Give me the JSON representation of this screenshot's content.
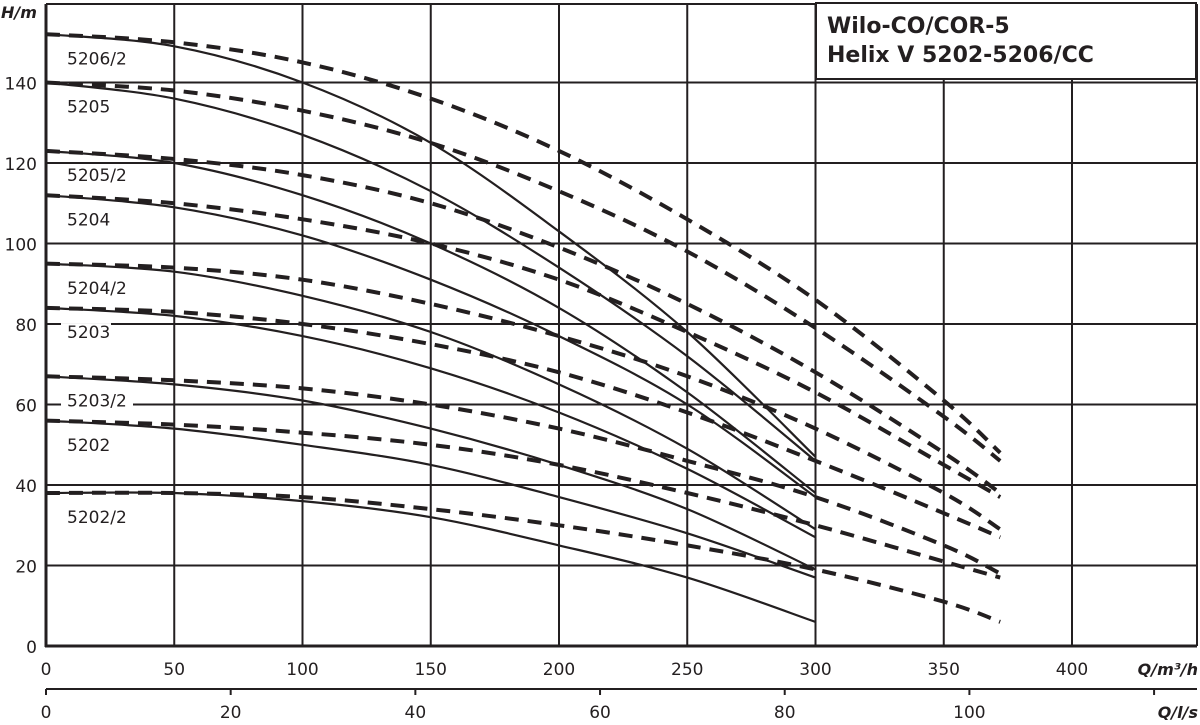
{
  "title": {
    "line1": "Wilo-CO/COR-5",
    "line2": "Helix V 5202-5206/CC"
  },
  "colors": {
    "line": "#231f20",
    "background": "#ffffff"
  },
  "chart_data": {
    "type": "line",
    "title": "Wilo-CO/COR-5 Helix V 5202-5206/CC",
    "xlabel": "Q/m³/h",
    "xlabel2": "Q/l/s",
    "ylabel": "H/m",
    "xlim": [
      0,
      445
    ],
    "ylim": [
      0,
      159
    ],
    "x_ticks": [
      0,
      50,
      100,
      150,
      200,
      250,
      300,
      350,
      400
    ],
    "x2_ticks": [
      0,
      20,
      40,
      60,
      80,
      100
    ],
    "y_ticks": [
      0,
      20,
      40,
      60,
      80,
      100,
      120,
      140
    ],
    "grid": true,
    "legend": "inline curve labels",
    "series": [
      {
        "name": "5206/2",
        "style": "solid",
        "x": [
          0,
          50,
          100,
          150,
          200,
          250,
          300
        ],
        "y": [
          152,
          149,
          140,
          125,
          103,
          78,
          47
        ]
      },
      {
        "name": "5206/2",
        "style": "dashed",
        "x": [
          0,
          50,
          100,
          150,
          200,
          250,
          300,
          350,
          372
        ],
        "y": [
          152,
          150,
          145,
          136,
          123,
          106,
          86,
          61,
          48
        ]
      },
      {
        "name": "5205",
        "style": "solid",
        "x": [
          0,
          50,
          100,
          150,
          200,
          250,
          300
        ],
        "y": [
          140,
          136,
          127,
          113,
          94,
          72,
          46
        ]
      },
      {
        "name": "5205",
        "style": "dashed",
        "x": [
          0,
          50,
          100,
          150,
          200,
          250,
          300,
          350,
          372
        ],
        "y": [
          140,
          138,
          133,
          125,
          113,
          98,
          79,
          57,
          46
        ]
      },
      {
        "name": "5205/2",
        "style": "solid",
        "x": [
          0,
          50,
          100,
          150,
          200,
          250,
          300
        ],
        "y": [
          123,
          120,
          112,
          100,
          84,
          63,
          38
        ]
      },
      {
        "name": "5205/2",
        "style": "dashed",
        "x": [
          0,
          50,
          100,
          150,
          200,
          250,
          300,
          350,
          372
        ],
        "y": [
          123,
          121,
          117,
          110,
          99,
          85,
          68,
          48,
          38
        ]
      },
      {
        "name": "5204",
        "style": "solid",
        "x": [
          0,
          50,
          100,
          150,
          200,
          250,
          300
        ],
        "y": [
          112,
          109,
          102,
          91,
          77,
          60,
          37
        ]
      },
      {
        "name": "5204",
        "style": "dashed",
        "x": [
          0,
          50,
          100,
          150,
          200,
          250,
          300,
          350,
          372
        ],
        "y": [
          112,
          110,
          106,
          100,
          91,
          78,
          63,
          45,
          37
        ]
      },
      {
        "name": "5204/2",
        "style": "solid",
        "x": [
          0,
          50,
          100,
          150,
          200,
          250,
          300
        ],
        "y": [
          95,
          93,
          87,
          78,
          65,
          49,
          29
        ]
      },
      {
        "name": "5204/2",
        "style": "dashed",
        "x": [
          0,
          50,
          100,
          150,
          200,
          250,
          300,
          350,
          372
        ],
        "y": [
          95,
          94,
          91,
          85,
          77,
          67,
          54,
          38,
          29
        ]
      },
      {
        "name": "5203",
        "style": "solid",
        "x": [
          0,
          50,
          100,
          150,
          200,
          250,
          300
        ],
        "y": [
          84,
          82,
          77,
          69,
          58,
          44,
          27
        ]
      },
      {
        "name": "5203",
        "style": "dashed",
        "x": [
          0,
          50,
          100,
          150,
          200,
          250,
          300,
          350,
          372
        ],
        "y": [
          84,
          83,
          80,
          75,
          68,
          58,
          46,
          33,
          27
        ]
      },
      {
        "name": "5203/2",
        "style": "solid",
        "x": [
          0,
          50,
          100,
          150,
          200,
          250,
          300
        ],
        "y": [
          67,
          65,
          61,
          54,
          45,
          34,
          19
        ]
      },
      {
        "name": "5203/2",
        "style": "dashed",
        "x": [
          0,
          50,
          100,
          150,
          200,
          250,
          300,
          350,
          372
        ],
        "y": [
          67,
          66,
          64,
          60,
          54,
          46,
          37,
          25,
          18
        ]
      },
      {
        "name": "5202",
        "style": "solid",
        "x": [
          0,
          50,
          100,
          150,
          200,
          250,
          300
        ],
        "y": [
          56,
          54,
          50,
          45,
          37,
          28,
          17
        ]
      },
      {
        "name": "5202",
        "style": "dashed",
        "x": [
          0,
          50,
          100,
          150,
          200,
          250,
          300,
          350,
          372
        ],
        "y": [
          56,
          55,
          53,
          50,
          45,
          38,
          30,
          21,
          17
        ]
      },
      {
        "name": "5202/2",
        "style": "solid",
        "x": [
          0,
          50,
          100,
          150,
          200,
          250,
          300
        ],
        "y": [
          38,
          38,
          36,
          32,
          25,
          17,
          6
        ]
      },
      {
        "name": "5202/2",
        "style": "dashed",
        "x": [
          0,
          50,
          100,
          150,
          200,
          250,
          300,
          350,
          372
        ],
        "y": [
          38,
          38,
          37,
          34,
          30,
          25,
          19,
          11,
          6
        ]
      }
    ],
    "curve_labels": [
      {
        "text": "5206/2",
        "y": 146,
        "highlight": false
      },
      {
        "text": "5205",
        "y": 134,
        "highlight": false
      },
      {
        "text": "5205/2",
        "y": 117,
        "highlight": true
      },
      {
        "text": "5204",
        "y": 106,
        "highlight": false
      },
      {
        "text": "5204/2",
        "y": 89,
        "highlight": false
      },
      {
        "text": "5203",
        "y": 78,
        "highlight": true
      },
      {
        "text": "5203/2",
        "y": 61,
        "highlight": true
      },
      {
        "text": "5202",
        "y": 50,
        "highlight": false
      },
      {
        "text": "5202/2",
        "y": 32,
        "highlight": false
      }
    ]
  }
}
